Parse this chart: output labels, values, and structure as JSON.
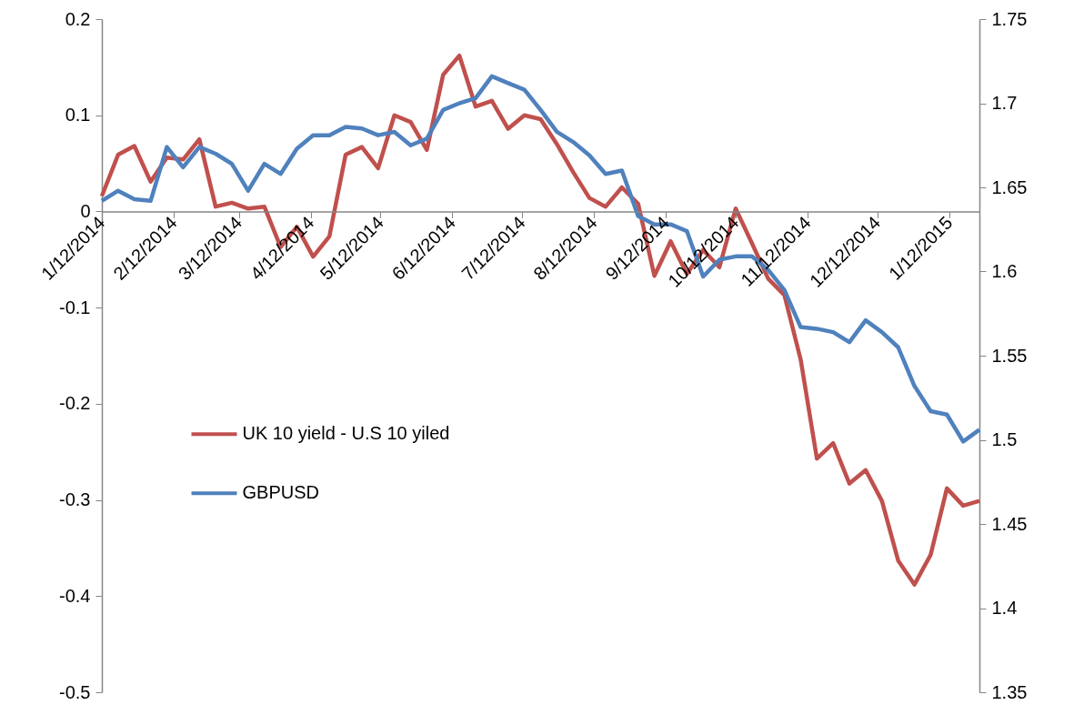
{
  "chart_data": {
    "type": "line",
    "x": [
      "2014-01-12",
      "2014-01-19",
      "2014-01-26",
      "2014-02-02",
      "2014-02-09",
      "2014-02-16",
      "2014-02-23",
      "2014-03-02",
      "2014-03-09",
      "2014-03-16",
      "2014-03-23",
      "2014-03-30",
      "2014-04-06",
      "2014-04-13",
      "2014-04-20",
      "2014-04-27",
      "2014-05-04",
      "2014-05-11",
      "2014-05-18",
      "2014-05-25",
      "2014-06-01",
      "2014-06-08",
      "2014-06-15",
      "2014-06-22",
      "2014-06-29",
      "2014-07-06",
      "2014-07-13",
      "2014-07-20",
      "2014-07-27",
      "2014-08-03",
      "2014-08-10",
      "2014-08-17",
      "2014-08-24",
      "2014-08-31",
      "2014-09-07",
      "2014-09-14",
      "2014-09-21",
      "2014-09-28",
      "2014-10-05",
      "2014-10-12",
      "2014-10-19",
      "2014-10-26",
      "2014-11-02",
      "2014-11-09",
      "2014-11-16",
      "2014-11-23",
      "2014-11-30",
      "2014-12-07",
      "2014-12-14",
      "2014-12-21",
      "2014-12-28",
      "2015-01-04",
      "2015-01-11",
      "2015-01-18",
      "2015-01-25"
    ],
    "xlim": [
      "2014-01-12",
      "2015-01-25"
    ],
    "xticks": [
      {
        "value": "2014-01-12",
        "label": "1/12/2014"
      },
      {
        "value": "2014-02-12",
        "label": "2/12/2014"
      },
      {
        "value": "2014-03-12",
        "label": "3/12/2014"
      },
      {
        "value": "2014-04-12",
        "label": "4/12/2014"
      },
      {
        "value": "2014-05-12",
        "label": "5/12/2014"
      },
      {
        "value": "2014-06-12",
        "label": "6/12/2014"
      },
      {
        "value": "2014-07-12",
        "label": "7/12/2014"
      },
      {
        "value": "2014-08-12",
        "label": "8/12/2014"
      },
      {
        "value": "2014-09-12",
        "label": "9/12/2014"
      },
      {
        "value": "2014-10-12",
        "label": "10/12/2014"
      },
      {
        "value": "2014-11-12",
        "label": "11/12/2014"
      },
      {
        "value": "2014-12-12",
        "label": "12/12/2014"
      },
      {
        "value": "2015-01-12",
        "label": "1/12/2015"
      }
    ],
    "ylim": [
      -0.5,
      0.2
    ],
    "yticks": [
      -0.5,
      -0.4,
      -0.3,
      -0.2,
      -0.1,
      0,
      0.1,
      0.2
    ],
    "y2lim": [
      1.35,
      1.75
    ],
    "y2ticks": [
      1.35,
      1.4,
      1.45,
      1.5,
      1.55,
      1.6,
      1.65,
      1.7,
      1.75
    ],
    "legend": "left",
    "series": [
      {
        "name": "UK 10 yield - U.S 10 yiled",
        "color": "#c0504d",
        "values": [
          0.016,
          0.059,
          0.068,
          0.031,
          0.056,
          0.054,
          0.075,
          0.005,
          0.009,
          0.003,
          0.005,
          -0.037,
          -0.016,
          -0.047,
          -0.026,
          0.059,
          0.067,
          0.045,
          0.1,
          0.093,
          0.064,
          0.142,
          0.162,
          0.109,
          0.115,
          0.086,
          0.1,
          0.096,
          0.07,
          0.041,
          0.014,
          0.005,
          0.025,
          0.008,
          -0.067,
          -0.031,
          -0.065,
          -0.04,
          -0.058,
          0.003,
          -0.033,
          -0.07,
          -0.087,
          -0.154,
          -0.257,
          -0.241,
          -0.283,
          -0.269,
          -0.301,
          -0.363,
          -0.388,
          -0.357,
          -0.288,
          -0.306,
          -0.301
        ]
      },
      {
        "name": "GBPUSD",
        "color": "#4f81bd",
        "axis": "y2",
        "values": [
          1.642,
          1.648,
          1.643,
          1.642,
          1.674,
          1.662,
          1.674,
          1.67,
          1.664,
          1.648,
          1.664,
          1.658,
          1.673,
          1.681,
          1.681,
          1.686,
          1.685,
          1.681,
          1.683,
          1.675,
          1.679,
          1.696,
          1.7,
          1.703,
          1.716,
          1.712,
          1.708,
          1.696,
          1.683,
          1.677,
          1.669,
          1.658,
          1.66,
          1.633,
          1.628,
          1.628,
          1.624,
          1.597,
          1.607,
          1.609,
          1.609,
          1.601,
          1.589,
          1.567,
          1.566,
          1.564,
          1.558,
          1.571,
          1.564,
          1.555,
          1.532,
          1.517,
          1.515,
          1.499,
          1.506
        ]
      }
    ]
  }
}
